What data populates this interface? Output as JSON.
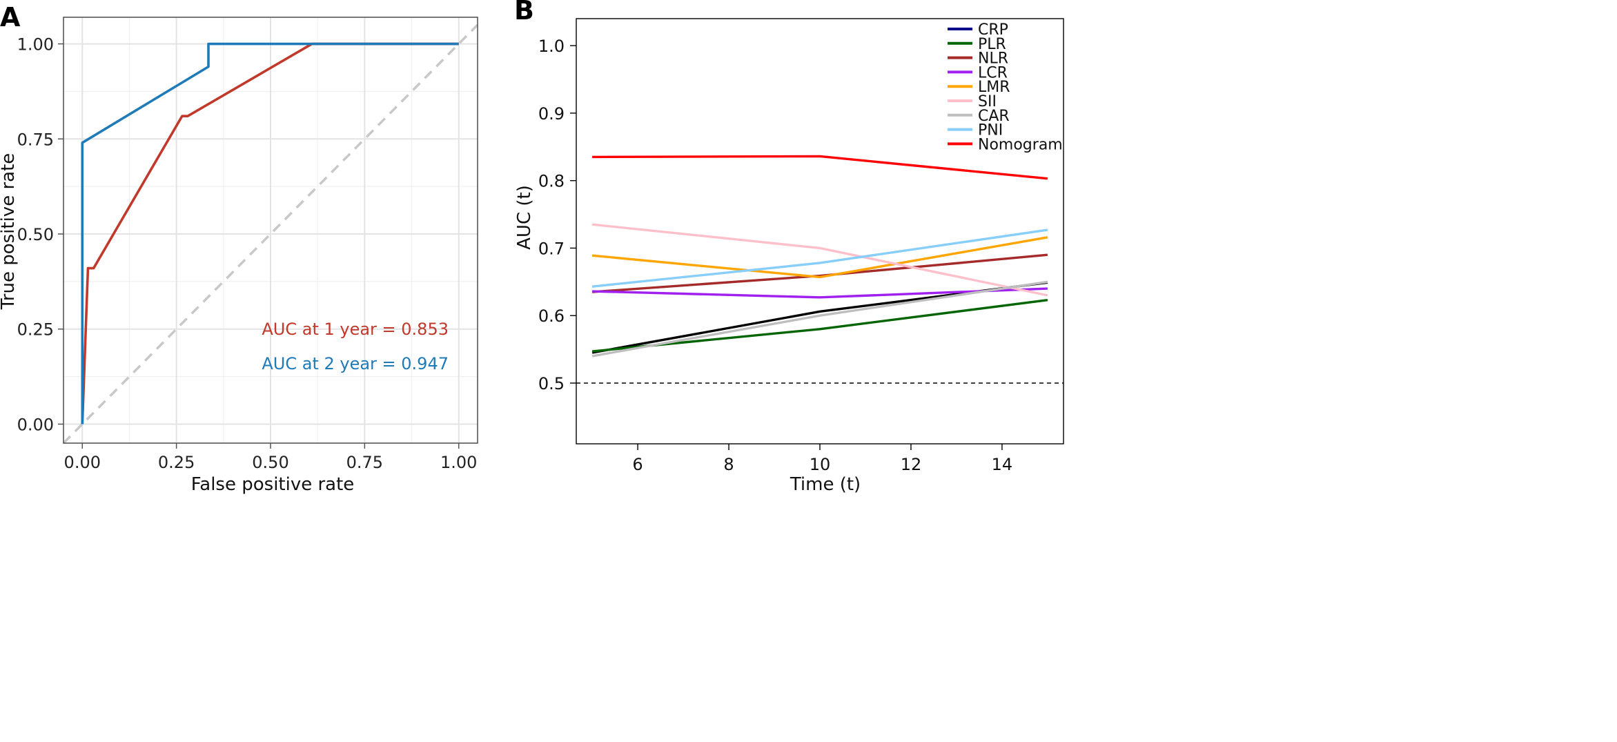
{
  "chart_data": [
    {
      "panel_label": "A",
      "type": "line",
      "title": "",
      "xlabel": "False positive rate",
      "ylabel": "True positive rate",
      "xlim": [
        -0.05,
        1.05
      ],
      "ylim": [
        -0.05,
        1.07
      ],
      "xticks": [
        0,
        0.25,
        0.5,
        0.75,
        1
      ],
      "xtick_labels": [
        "0.00",
        "0.25",
        "0.50",
        "0.75",
        "1.00"
      ],
      "yticks": [
        0,
        0.25,
        0.5,
        0.75,
        1
      ],
      "ytick_labels": [
        "0.00",
        "0.25",
        "0.50",
        "0.75",
        "1.00"
      ],
      "grid": true,
      "series": [
        {
          "name": "1 year",
          "color": "#C0392B",
          "points": [
            [
              0,
              0
            ],
            [
              0.015,
              0.41
            ],
            [
              0.03,
              0.41
            ],
            [
              0.265,
              0.81
            ],
            [
              0.28,
              0.81
            ],
            [
              0.61,
              1.0
            ],
            [
              1.0,
              1.0
            ]
          ]
        },
        {
          "name": "2 year",
          "color": "#1F7BB8",
          "points": [
            [
              0,
              0
            ],
            [
              0,
              0.74
            ],
            [
              0.335,
              0.94
            ],
            [
              0.335,
              1.0
            ],
            [
              1.0,
              1.0
            ]
          ]
        }
      ],
      "reference_line": {
        "from": [
          -0.05,
          -0.05
        ],
        "to": [
          1.05,
          1.05
        ],
        "color": "#C8C8C8"
      },
      "annotations": [
        {
          "text": "AUC at 1 year = 0.853",
          "color": "#C0392B"
        },
        {
          "text": "AUC at 2 year = 0.947",
          "color": "#1F7BB8"
        }
      ]
    },
    {
      "panel_label": "B",
      "type": "line",
      "title": "",
      "xlabel": "Time (t)",
      "ylabel": "AUC (t)",
      "xlim": [
        4.65,
        15.35
      ],
      "ylim": [
        0.41,
        1.04
      ],
      "xticks": [
        6,
        8,
        10,
        12,
        14
      ],
      "xtick_labels": [
        "6",
        "8",
        "10",
        "12",
        "14"
      ],
      "yticks": [
        0.5,
        0.6,
        0.7,
        0.8,
        0.9,
        1.0
      ],
      "ytick_labels": [
        "0.5",
        "0.6",
        "0.7",
        "0.8",
        "0.9",
        "1.0"
      ],
      "grid": false,
      "x": [
        5,
        10,
        15
      ],
      "series": [
        {
          "name": "CRP",
          "color": "#00008B",
          "line_color": "#000000",
          "values": [
            0.545,
            0.606,
            0.649
          ]
        },
        {
          "name": "PLR",
          "color": "#006400",
          "values": [
            0.547,
            0.58,
            0.623
          ]
        },
        {
          "name": "NLR",
          "color": "#A52A2A",
          "values": [
            0.635,
            0.659,
            0.69
          ]
        },
        {
          "name": "LCR",
          "color": "#A020F0",
          "values": [
            0.636,
            0.627,
            0.64
          ]
        },
        {
          "name": "LMR",
          "color": "#FFA500",
          "values": [
            0.689,
            0.657,
            0.716
          ]
        },
        {
          "name": "SII",
          "color": "#FFC0CB",
          "values": [
            0.735,
            0.7,
            0.63
          ]
        },
        {
          "name": "CAR",
          "color": "#BEBEBE",
          "values": [
            0.54,
            0.6,
            0.65
          ]
        },
        {
          "name": "PNI",
          "color": "#87CEFA",
          "values": [
            0.643,
            0.678,
            0.727
          ]
        },
        {
          "name": "Nomogram",
          "color": "#FF0000",
          "values": [
            0.835,
            0.836,
            0.803
          ]
        }
      ],
      "reference_line": {
        "y": 0.5,
        "color": "#000000",
        "style": "dashed"
      },
      "legend_position": "top-right"
    }
  ]
}
